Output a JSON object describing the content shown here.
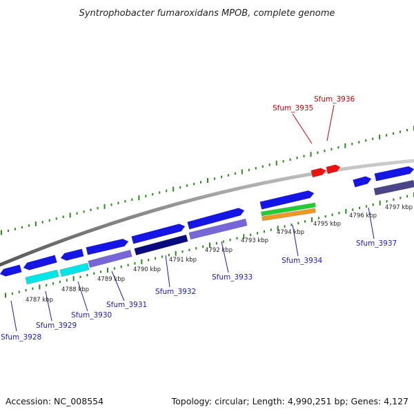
{
  "title": "Syntrophobacter fumaroxidans MPOB, complete genome",
  "accession_text": "Accession: NC_008554",
  "summary_text": "Topology: circular; Length: 4,990,251 bp; Genes: 4,127",
  "colors": {
    "backbone": "#808080",
    "tick": "#2a8a1a",
    "label_blue": "#1a1acc",
    "label_red": "#cc0000",
    "gene_blue": "#1515e6",
    "gene_cyan": "#00e6e6",
    "gene_lavender": "#7766d8",
    "gene_navy": "#0a0a80",
    "gene_slate": "#4a4488",
    "gene_green": "#22cc33",
    "gene_orange": "#ee9922",
    "gene_red": "#ee1111"
  },
  "scale_labels": [
    "4787 kbp",
    "4788 kbp",
    "4789 kbp",
    "4790 kbp",
    "4791 kbp",
    "4792 kbp",
    "4793 kbp",
    "4794 kbp",
    "4795 kbp",
    "4796 kbp",
    "4797 kbp"
  ],
  "gene_labels": [
    {
      "name": "Sfum_3928",
      "color": "label_blue"
    },
    {
      "name": "Sfum_3929",
      "color": "label_blue"
    },
    {
      "name": "Sfum_3930",
      "color": "label_blue"
    },
    {
      "name": "Sfum_3931",
      "color": "label_blue"
    },
    {
      "name": "Sfum_3932",
      "color": "label_blue"
    },
    {
      "name": "Sfum_3933",
      "color": "label_blue"
    },
    {
      "name": "Sfum_3934",
      "color": "label_blue"
    },
    {
      "name": "Sfum_3935",
      "color": "label_red"
    },
    {
      "name": "Sfum_3936",
      "color": "label_red"
    },
    {
      "name": "Sfum_3937",
      "color": "label_blue"
    }
  ],
  "features": [
    {
      "name": "gene-forward-1",
      "color": "gene_blue"
    },
    {
      "name": "gene-forward-2",
      "color": "gene_blue"
    },
    {
      "name": "gene-forward-3",
      "color": "gene_blue"
    },
    {
      "name": "gene-forward-4",
      "color": "gene_blue"
    },
    {
      "name": "gene-forward-5",
      "color": "gene_blue"
    },
    {
      "name": "gene-forward-6",
      "color": "gene_blue"
    },
    {
      "name": "gene-forward-7",
      "color": "gene_blue"
    },
    {
      "name": "gene-forward-8",
      "color": "gene_blue"
    },
    {
      "name": "gene-forward-9",
      "color": "gene_blue"
    },
    {
      "name": "cds-cyan-1",
      "color": "gene_cyan"
    },
    {
      "name": "cds-cyan-2",
      "color": "gene_cyan"
    },
    {
      "name": "cds-lavender-1",
      "color": "gene_lavender"
    },
    {
      "name": "cds-navy",
      "color": "gene_navy"
    },
    {
      "name": "cds-lavender-2",
      "color": "gene_lavender"
    },
    {
      "name": "cds-green",
      "color": "gene_green"
    },
    {
      "name": "cds-orange",
      "color": "gene_orange"
    },
    {
      "name": "cds-slate",
      "color": "gene_slate"
    },
    {
      "name": "gene-red-1",
      "color": "gene_red"
    },
    {
      "name": "gene-red-2",
      "color": "gene_red"
    }
  ]
}
